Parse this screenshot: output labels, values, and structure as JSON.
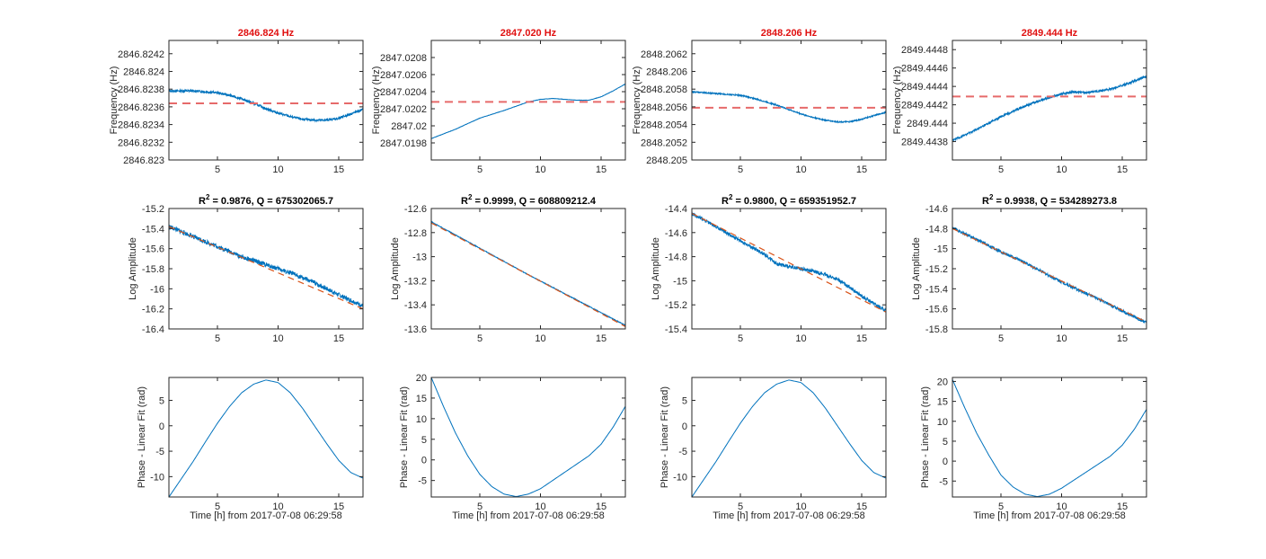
{
  "figure": {
    "colors": {
      "data": "#0072BD",
      "fit": "#D95319",
      "mean": "#E66A6A",
      "title_red": "#E01010",
      "axis": "#262626"
    },
    "xlabel": "Time [h] from 2017-07-08 06:29:58"
  },
  "chart_data": [
    {
      "type": "line",
      "panel": "frequency",
      "column": 1,
      "title": "2846.824 Hz",
      "ylabel": "Frequency (Hz)",
      "xlim": [
        1,
        17
      ],
      "ylim": [
        2846.823,
        2846.82435
      ],
      "xticks": [
        "5",
        "10",
        "15"
      ],
      "yticks": [
        "2846.823",
        "2846.8232",
        "2846.8234",
        "2846.8236",
        "2846.8238",
        "2846.824",
        "2846.8242"
      ],
      "mean_line": 2846.82364,
      "noise": 1.3e-05,
      "series": [
        {
          "name": "",
          "x": [
            1,
            3,
            5,
            6,
            7,
            8,
            9,
            10,
            11,
            12,
            13,
            14,
            15,
            16,
            17
          ],
          "values": [
            2846.82378,
            2846.82378,
            2846.82376,
            2846.82373,
            2846.82369,
            2846.82364,
            2846.82358,
            2846.82353,
            2846.82349,
            2846.82346,
            2846.82345,
            2846.82345,
            2846.82347,
            2846.82352,
            2846.82357
          ]
        }
      ]
    },
    {
      "type": "line",
      "panel": "frequency",
      "column": 2,
      "title": "2847.020 Hz",
      "ylabel": "Frequency (Hz)",
      "xlim": [
        1,
        17
      ],
      "ylim": [
        2847.0196,
        2847.021
      ],
      "xticks": [
        "5",
        "10",
        "15"
      ],
      "yticks": [
        "2847.0198",
        "2847.02",
        "2847.0202",
        "2847.0204",
        "2847.0206",
        "2847.0208"
      ],
      "mean_line": 2847.02028,
      "noise": 2e-06,
      "series": [
        {
          "name": "",
          "x": [
            1,
            3,
            5,
            7,
            9,
            10,
            11,
            12,
            13,
            14,
            15,
            16,
            17
          ],
          "values": [
            2847.01985,
            2847.01996,
            2847.02009,
            2847.02018,
            2847.02028,
            2847.02031,
            2847.02032,
            2847.02031,
            2847.0203,
            2847.0203,
            2847.02034,
            2847.02041,
            2847.02049
          ]
        }
      ]
    },
    {
      "type": "line",
      "panel": "frequency",
      "column": 3,
      "title": "2848.206 Hz",
      "ylabel": "Frequency (Hz)",
      "xlim": [
        1,
        17
      ],
      "ylim": [
        2848.205,
        2848.20635
      ],
      "xticks": [
        "5",
        "10",
        "15"
      ],
      "yticks": [
        "2848.205",
        "2848.2052",
        "2848.2054",
        "2848.2056",
        "2848.2058",
        "2848.206",
        "2848.2062"
      ],
      "mean_line": 2848.20559,
      "noise": 7e-06,
      "series": [
        {
          "name": "",
          "x": [
            1,
            3,
            5,
            6,
            7,
            8,
            9,
            10,
            11,
            12,
            13,
            14,
            15,
            16,
            17
          ],
          "values": [
            2848.20577,
            2848.20575,
            2848.20573,
            2848.2057,
            2848.20566,
            2848.20562,
            2848.20557,
            2848.20552,
            2848.20548,
            2848.20545,
            2848.20543,
            2848.20543,
            2848.20546,
            2848.2055,
            2848.20554
          ]
        }
      ]
    },
    {
      "type": "line",
      "panel": "frequency",
      "column": 4,
      "title": "2849.444 Hz",
      "ylabel": "Frequency (Hz)",
      "xlim": [
        1,
        17
      ],
      "ylim": [
        2849.4436,
        2849.4449
      ],
      "xticks": [
        "5",
        "10",
        "15"
      ],
      "yticks": [
        "2849.4438",
        "2849.444",
        "2849.4442",
        "2849.4444",
        "2849.4446",
        "2849.4448"
      ],
      "mean_line": 2849.44429,
      "noise": 1.2e-05,
      "series": [
        {
          "name": "",
          "x": [
            1,
            3,
            5,
            7,
            9,
            10,
            11,
            12,
            13,
            14,
            15,
            16,
            17
          ],
          "values": [
            2849.44381,
            2849.44393,
            2849.44407,
            2849.44419,
            2849.44428,
            2849.44432,
            2849.44434,
            2849.44433,
            2849.44435,
            2849.44437,
            2849.44441,
            2849.44446,
            2849.44451
          ]
        }
      ]
    },
    {
      "type": "line",
      "panel": "amplitude",
      "column": 1,
      "title_parts": [
        "R",
        "2",
        " = 0.9876, Q = 675302065.7"
      ],
      "ylabel": "Log Amplitude",
      "xlim": [
        1,
        17
      ],
      "ylim": [
        -16.4,
        -15.2
      ],
      "xticks": [
        "5",
        "10",
        "15"
      ],
      "yticks": [
        "-16.4",
        "-16.2",
        "-16",
        "-15.8",
        "-15.6",
        "-15.4",
        "-15.2"
      ],
      "fit": {
        "x": [
          1,
          17
        ],
        "values": [
          -15.38,
          -16.2
        ]
      },
      "noise": 0.022,
      "series": [
        {
          "name": "",
          "x": [
            1,
            3,
            5,
            7,
            9,
            11,
            13,
            15,
            17
          ],
          "values": [
            -15.38,
            -15.48,
            -15.58,
            -15.68,
            -15.76,
            -15.84,
            -15.94,
            -16.06,
            -16.17
          ]
        }
      ]
    },
    {
      "type": "line",
      "panel": "amplitude",
      "column": 2,
      "title_parts": [
        "R",
        "2",
        " = 0.9999, Q = 608809212.4"
      ],
      "ylabel": "Log Amplitude",
      "xlim": [
        1,
        17
      ],
      "ylim": [
        -13.6,
        -12.6
      ],
      "xticks": [
        "5",
        "10",
        "15"
      ],
      "yticks": [
        "-13.6",
        "-13.4",
        "-13.2",
        "-13",
        "-12.8",
        "-12.6"
      ],
      "fit": {
        "x": [
          1,
          17
        ],
        "values": [
          -12.72,
          -13.58
        ]
      },
      "noise": 0.003,
      "series": [
        {
          "name": "",
          "x": [
            1,
            5,
            9,
            13,
            17
          ],
          "values": [
            -12.71,
            -12.93,
            -13.15,
            -13.36,
            -13.57
          ]
        }
      ]
    },
    {
      "type": "line",
      "panel": "amplitude",
      "column": 3,
      "title_parts": [
        "R",
        "2",
        " = 0.9800, Q = 659351952.7"
      ],
      "ylabel": "Log Amplitude",
      "xlim": [
        1,
        17
      ],
      "ylim": [
        -15.4,
        -14.4
      ],
      "xticks": [
        "5",
        "10",
        "15"
      ],
      "yticks": [
        "-15.4",
        "-15.2",
        "-15",
        "-14.8",
        "-14.6",
        "-14.4"
      ],
      "fit": {
        "x": [
          1,
          17
        ],
        "values": [
          -14.44,
          -15.26
        ]
      },
      "noise": 0.014,
      "series": [
        {
          "name": "",
          "x": [
            1,
            3,
            5,
            7,
            8,
            9,
            10,
            11,
            12,
            13,
            14,
            15,
            16,
            17
          ],
          "values": [
            -14.44,
            -14.55,
            -14.67,
            -14.78,
            -14.86,
            -14.88,
            -14.9,
            -14.92,
            -14.95,
            -14.99,
            -15.05,
            -15.13,
            -15.19,
            -15.25
          ]
        }
      ]
    },
    {
      "type": "line",
      "panel": "amplitude",
      "column": 4,
      "title_parts": [
        "R",
        "2",
        " = 0.9938, Q = 534289273.8"
      ],
      "ylabel": "Log Amplitude",
      "xlim": [
        1,
        17
      ],
      "ylim": [
        -15.8,
        -14.6
      ],
      "xticks": [
        "5",
        "10",
        "15"
      ],
      "yticks": [
        "-15.8",
        "-15.6",
        "-15.4",
        "-15.2",
        "-15",
        "-14.8",
        "-14.6"
      ],
      "fit": {
        "x": [
          1,
          17
        ],
        "values": [
          -14.8,
          -15.73
        ]
      },
      "noise": 0.015,
      "series": [
        {
          "name": "",
          "x": [
            1,
            3,
            5,
            7,
            9,
            11,
            13,
            15,
            17
          ],
          "values": [
            -14.79,
            -14.91,
            -15.03,
            -15.14,
            -15.27,
            -15.39,
            -15.5,
            -15.62,
            -15.74
          ]
        }
      ]
    },
    {
      "type": "line",
      "panel": "phase",
      "column": 1,
      "ylabel": "Phase - Linear Fit (rad)",
      "xlim": [
        1,
        17
      ],
      "ylim": [
        -14,
        9.5
      ],
      "xticks": [
        "5",
        "10",
        "15"
      ],
      "yticks": [
        "-10",
        "-5",
        "0",
        "5"
      ],
      "series": [
        {
          "name": "",
          "x": [
            1,
            2,
            3,
            4,
            5,
            6,
            7,
            8,
            9,
            10,
            11,
            12,
            13,
            14,
            15,
            16,
            17
          ],
          "values": [
            -14,
            -10.5,
            -7,
            -3.2,
            0.5,
            3.8,
            6.5,
            8.2,
            9,
            8.5,
            6.5,
            3.5,
            0,
            -3.5,
            -6.8,
            -9.2,
            -10.3
          ]
        }
      ]
    },
    {
      "type": "line",
      "panel": "phase",
      "column": 2,
      "ylabel": "Phase - Linear Fit (rad)",
      "xlim": [
        1,
        17
      ],
      "ylim": [
        -9,
        20
      ],
      "xticks": [
        "5",
        "10",
        "15"
      ],
      "yticks": [
        "-5",
        "0",
        "5",
        "10",
        "15",
        "20"
      ],
      "series": [
        {
          "name": "",
          "x": [
            1,
            2,
            3,
            4,
            5,
            6,
            7,
            8,
            9,
            10,
            11,
            12,
            13,
            14,
            15,
            16,
            17
          ],
          "values": [
            20,
            13,
            6.5,
            1,
            -3.5,
            -6.5,
            -8.3,
            -8.9,
            -8.3,
            -7,
            -5,
            -3,
            -1,
            1,
            3.8,
            8,
            13
          ]
        }
      ]
    },
    {
      "type": "line",
      "panel": "phase",
      "column": 3,
      "ylabel": "Phase - Linear Fit (rad)",
      "xlim": [
        1,
        17
      ],
      "ylim": [
        -14,
        9.5
      ],
      "xticks": [
        "5",
        "10",
        "15"
      ],
      "yticks": [
        "-10",
        "-5",
        "0",
        "5"
      ],
      "series": [
        {
          "name": "",
          "x": [
            1,
            2,
            3,
            4,
            5,
            6,
            7,
            8,
            9,
            10,
            11,
            12,
            13,
            14,
            15,
            16,
            17
          ],
          "values": [
            -14,
            -10.5,
            -7,
            -3.2,
            0.5,
            3.8,
            6.5,
            8.2,
            9,
            8.5,
            6.5,
            3.5,
            0,
            -3.5,
            -6.8,
            -9.2,
            -10.3
          ]
        }
      ]
    },
    {
      "type": "line",
      "panel": "phase",
      "column": 4,
      "ylabel": "Phase - Linear Fit (rad)",
      "xlim": [
        1,
        17
      ],
      "ylim": [
        -9,
        21
      ],
      "xticks": [
        "5",
        "10",
        "15"
      ],
      "yticks": [
        "-5",
        "0",
        "5",
        "10",
        "15",
        "20"
      ],
      "series": [
        {
          "name": "",
          "x": [
            1,
            2,
            3,
            4,
            5,
            6,
            7,
            8,
            9,
            10,
            11,
            12,
            13,
            14,
            15,
            16,
            17
          ],
          "values": [
            20.5,
            13.5,
            7,
            1.5,
            -3.5,
            -6.5,
            -8.3,
            -8.9,
            -8.3,
            -6.8,
            -4.8,
            -2.8,
            -0.8,
            1.2,
            4,
            8,
            13
          ]
        }
      ]
    }
  ]
}
